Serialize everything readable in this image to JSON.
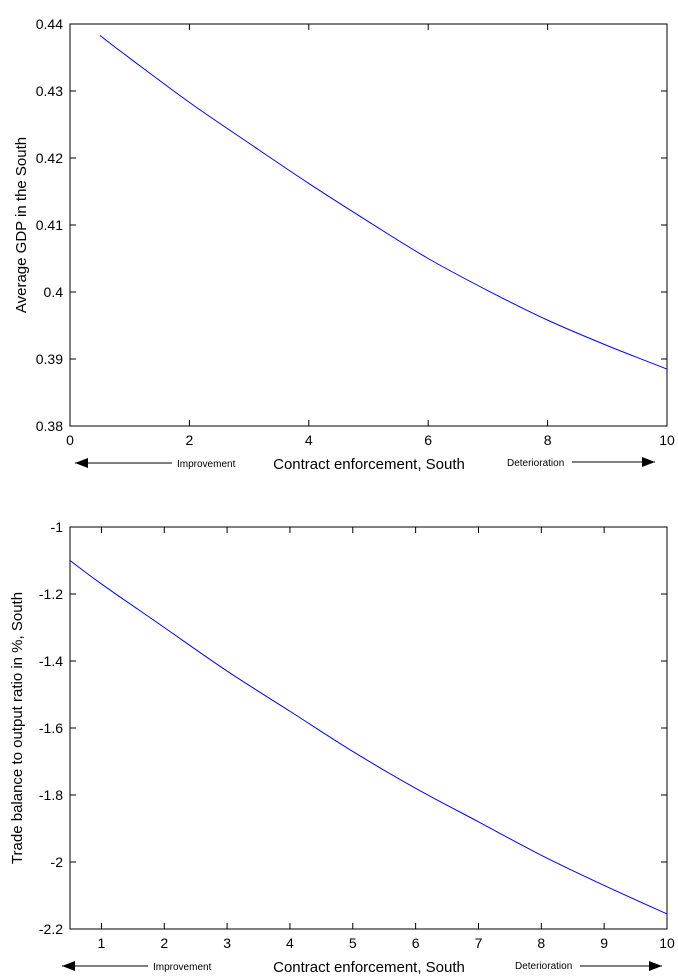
{
  "chart_data": [
    {
      "type": "line",
      "xlabel": "Contract enforcement, South",
      "ylabel": "Average GDP in the South",
      "xlim": [
        0,
        10
      ],
      "ylim": [
        0.38,
        0.44
      ],
      "xticks": [
        0,
        2,
        4,
        6,
        8,
        10
      ],
      "yticks": [
        0.38,
        0.39,
        0.4,
        0.41,
        0.42,
        0.43,
        0.44
      ],
      "xtick_labels": [
        "0",
        "2",
        "4",
        "6",
        "8",
        "10"
      ],
      "ytick_labels": [
        "0.38",
        "0.39",
        "0.4",
        "0.41",
        "0.42",
        "0.43",
        "0.44"
      ],
      "x": [
        0.5,
        1,
        2,
        3,
        4,
        5,
        6,
        7,
        8,
        9,
        10
      ],
      "y": [
        0.4383,
        0.4349,
        0.4283,
        0.4222,
        0.4162,
        0.4105,
        0.405,
        0.4002,
        0.3958,
        0.392,
        0.3885
      ],
      "annotations": {
        "left": "Improvement",
        "right": "Deterioration"
      }
    },
    {
      "type": "line",
      "xlabel": "Contract enforcement, South",
      "ylabel": "Trade balance to output ratio in %, South",
      "xlim": [
        0.5,
        10
      ],
      "ylim": [
        -2.2,
        -1
      ],
      "xticks": [
        1,
        2,
        3,
        4,
        5,
        6,
        7,
        8,
        9,
        10
      ],
      "yticks": [
        -2.2,
        -2,
        -1.8,
        -1.6,
        -1.4,
        -1.2,
        -1
      ],
      "xtick_labels": [
        "1",
        "2",
        "3",
        "4",
        "5",
        "6",
        "7",
        "8",
        "9",
        "10"
      ],
      "ytick_labels": [
        "-2.2",
        "-2",
        "-1.8",
        "-1.6",
        "-1.4",
        "-1.2",
        "-1"
      ],
      "x": [
        0.5,
        1,
        2,
        3,
        4,
        5,
        6,
        7,
        8,
        9,
        10
      ],
      "y": [
        -1.1,
        -1.17,
        -1.3,
        -1.43,
        -1.55,
        -1.67,
        -1.78,
        -1.88,
        -1.98,
        -2.07,
        -2.155
      ],
      "annotations": {
        "left": "Improvement",
        "right": "Deterioration"
      }
    }
  ]
}
